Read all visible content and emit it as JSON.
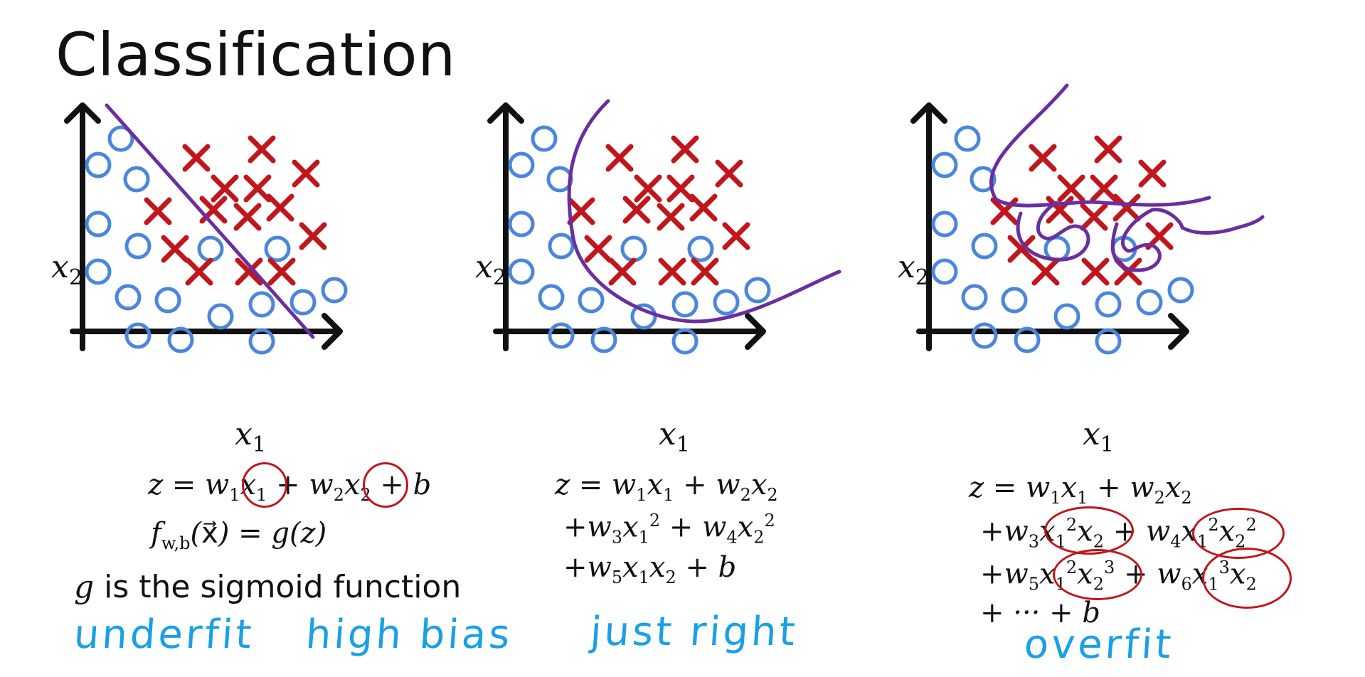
{
  "title": "Classification",
  "colors": {
    "circle": "#4a87dc",
    "cross": "#c0161c",
    "boundary": "#6a2ea1",
    "handwriting": "#1aa0e6",
    "axis": "#111111"
  },
  "icons": {
    "positive": "x-mark",
    "negative": "circle-mark"
  },
  "axes": {
    "x": "x1",
    "y": "x2"
  },
  "panels": [
    {
      "name": "linear",
      "equation": [
        "z = w1x1 + w2x2 + b",
        "f w,b(x) = g(z)"
      ],
      "caption": "underfit",
      "caption2": "high bias"
    },
    {
      "name": "quadratic",
      "equation": [
        "z = w1x1 + w2x2",
        "+w3x1^2 + w4x2^2",
        "+w5x1x2 + b"
      ],
      "caption": "just right"
    },
    {
      "name": "high-order",
      "equation": [
        "z = w1x1 + w2x2",
        "+w3x1^2x2 + w4x1^2x2^2",
        "+w5x1^2x2^3 + w6x1^3x2",
        "+ ··· + b"
      ],
      "caption": "overfit"
    }
  ],
  "note": "g is the sigmoid function"
}
